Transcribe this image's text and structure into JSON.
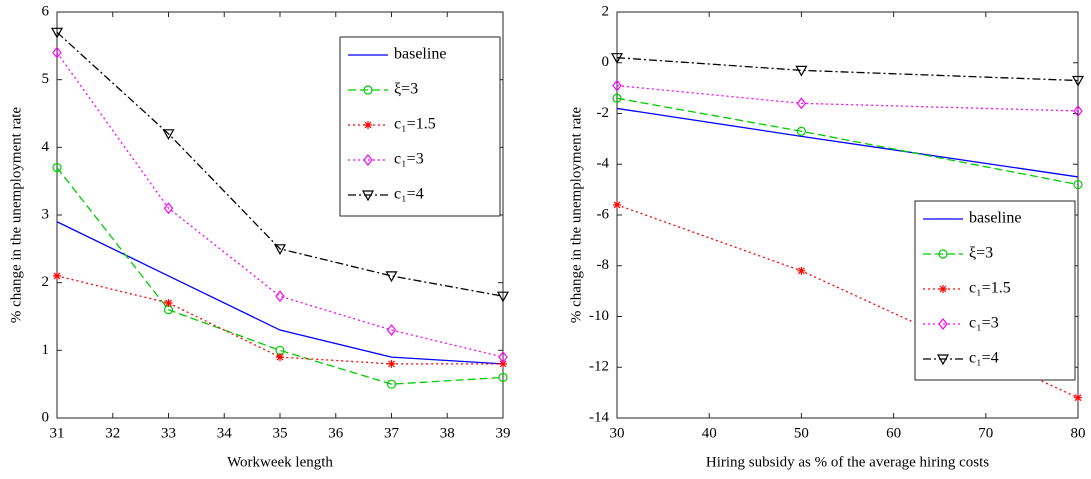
{
  "chart_data": [
    {
      "type": "line",
      "xlabel": "Workweek length",
      "ylabel": "% change in the unemployment rate",
      "x": [
        31,
        33,
        35,
        37,
        39
      ],
      "xlim": [
        31,
        39
      ],
      "xticks": [
        31,
        32,
        33,
        34,
        35,
        36,
        37,
        38,
        39
      ],
      "ylim": [
        0,
        6
      ],
      "yticks": [
        0,
        1,
        2,
        3,
        4,
        5,
        6
      ],
      "legend": "upper right",
      "series": [
        {
          "name": "baseline",
          "color": "#0000ff",
          "line_style": "solid",
          "marker": "none",
          "values": [
            2.9,
            2.1,
            1.3,
            0.9,
            0.8
          ]
        },
        {
          "name": "ξ=3",
          "color": "#00cc00",
          "line_style": "dashed",
          "marker": "circle",
          "values": [
            3.7,
            1.6,
            1.0,
            0.5,
            0.6
          ]
        },
        {
          "name": "c₁=1.5",
          "color": "#ff0000",
          "line_style": "dotted",
          "marker": "asterisk",
          "values": [
            2.1,
            1.7,
            0.9,
            0.8,
            0.8
          ]
        },
        {
          "name": "c₁=3",
          "color": "#ff00ff",
          "line_style": "dotted",
          "marker": "diamond",
          "values": [
            5.4,
            3.1,
            1.8,
            1.3,
            0.9
          ]
        },
        {
          "name": "c₁=4",
          "color": "#000000",
          "line_style": "dashdot",
          "marker": "triangle-down",
          "values": [
            5.7,
            4.2,
            2.5,
            2.1,
            1.8
          ]
        }
      ]
    },
    {
      "type": "line",
      "xlabel": "Hiring subsidy as % of the average hiring costs",
      "ylabel": "% change in the unemployment rate",
      "x": [
        30,
        50,
        80
      ],
      "xlim": [
        30,
        80
      ],
      "xticks": [
        30,
        40,
        50,
        60,
        70,
        80
      ],
      "ylim": [
        -14,
        2
      ],
      "yticks": [
        -14,
        -12,
        -10,
        -8,
        -6,
        -4,
        -2,
        0,
        2
      ],
      "legend": "lower right",
      "series": [
        {
          "name": "baseline",
          "color": "#0000ff",
          "line_style": "solid",
          "marker": "none",
          "values": [
            -1.8,
            -2.9,
            -4.5
          ]
        },
        {
          "name": "ξ=3",
          "color": "#00cc00",
          "line_style": "dashed",
          "marker": "circle",
          "values": [
            -1.4,
            -2.7,
            -4.8
          ]
        },
        {
          "name": "c₁=1.5",
          "color": "#ff0000",
          "line_style": "dotted",
          "marker": "asterisk",
          "values": [
            -5.6,
            -8.2,
            -13.2
          ]
        },
        {
          "name": "c₁=3",
          "color": "#ff00ff",
          "line_style": "dotted",
          "marker": "diamond",
          "values": [
            -0.9,
            -1.6,
            -1.9
          ]
        },
        {
          "name": "c₁=4",
          "color": "#000000",
          "line_style": "dashdot",
          "marker": "triangle-down",
          "values": [
            0.2,
            -0.3,
            -0.7
          ]
        }
      ]
    }
  ]
}
